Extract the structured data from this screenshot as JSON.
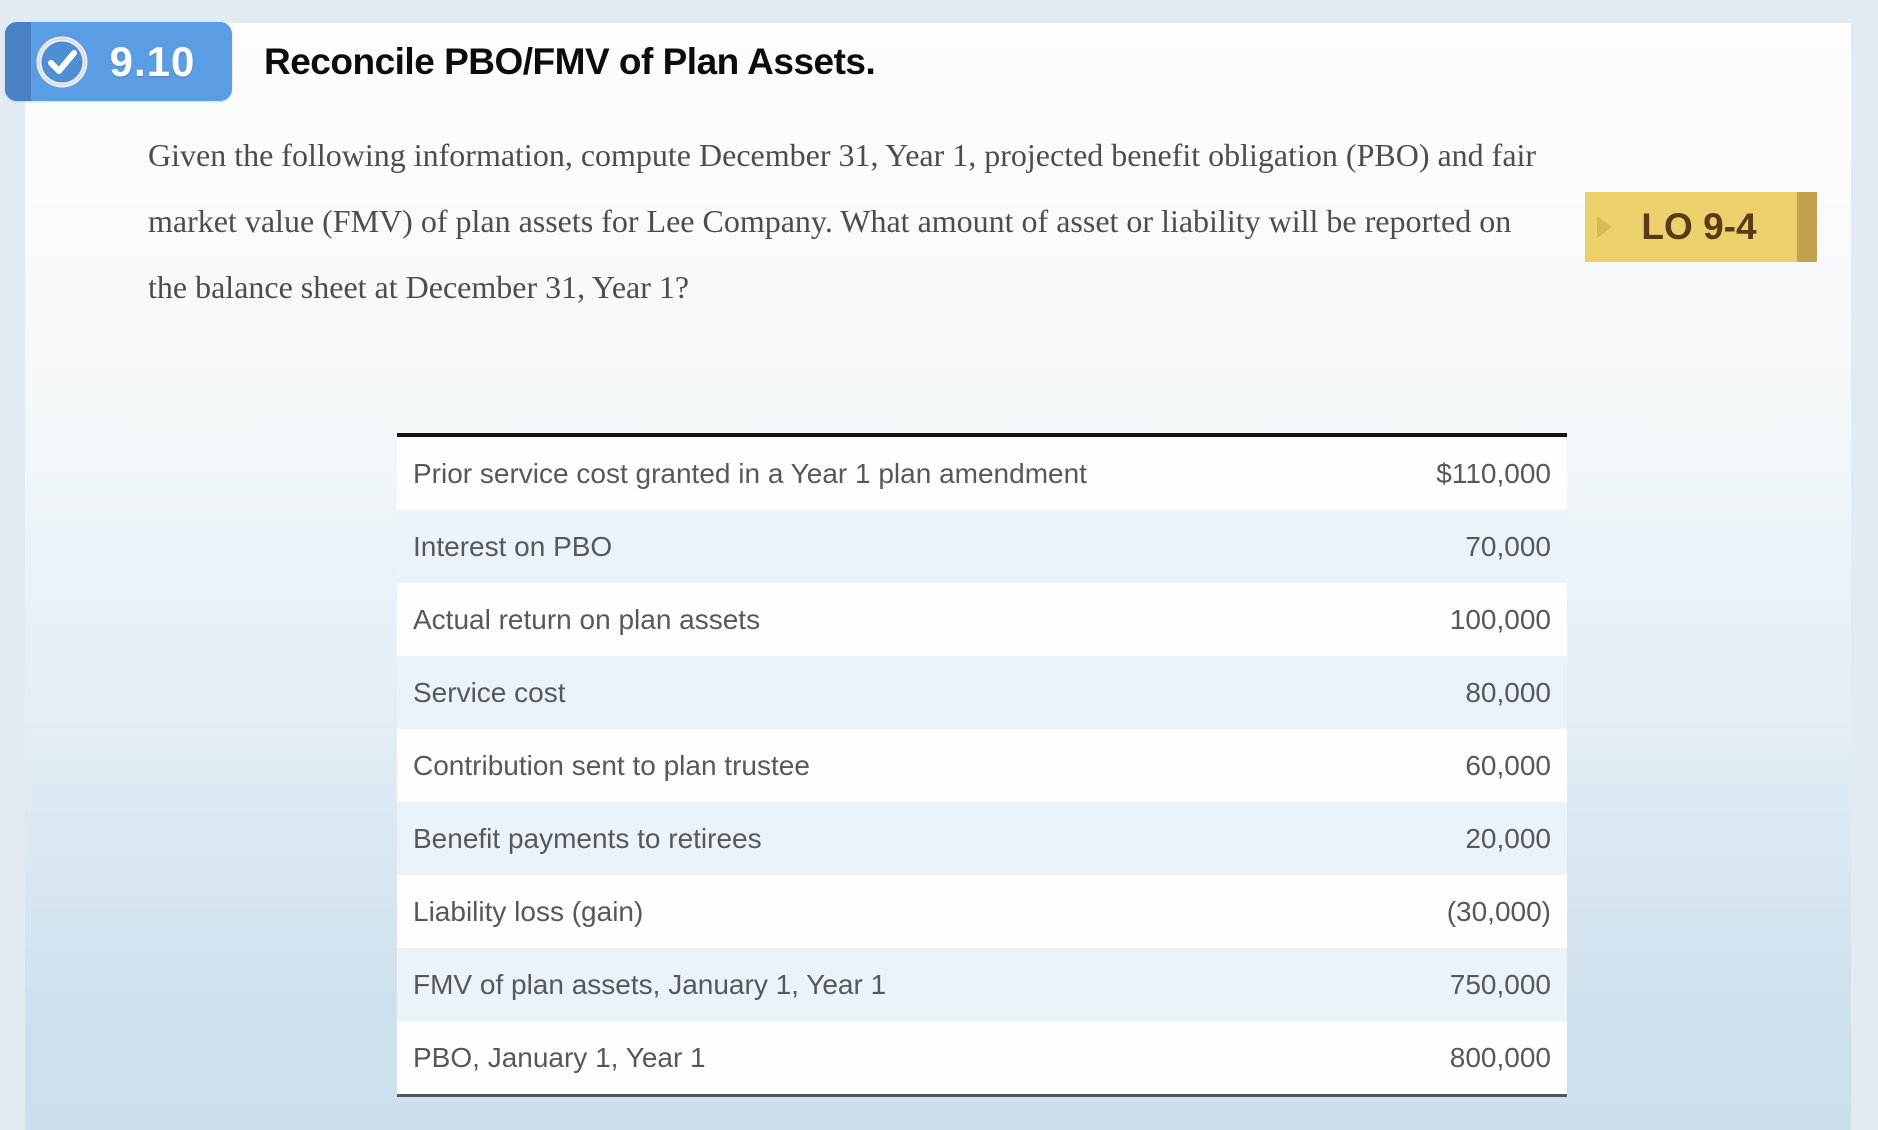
{
  "header": {
    "exercise_number": "9.10",
    "title": "Reconcile PBO/FMV of Plan Assets."
  },
  "learning_objective": {
    "label": "LO 9-4"
  },
  "question": {
    "text": "Given the following information, compute December 31, Year 1, projected benefit obligation (PBO) and fair market value (FMV) of plan assets for Lee Company. What amount of asset or liability will be reported on the balance sheet at December 31, Year 1?"
  },
  "table": {
    "rows": [
      {
        "label": "Prior service cost granted in a Year 1 plan amendment",
        "value": "$110,000"
      },
      {
        "label": "Interest on PBO",
        "value": "70,000"
      },
      {
        "label": "Actual return on plan assets",
        "value": "100,000"
      },
      {
        "label": "Service cost",
        "value": "80,000"
      },
      {
        "label": "Contribution sent to plan trustee",
        "value": "60,000"
      },
      {
        "label": "Benefit payments to retirees",
        "value": "20,000"
      },
      {
        "label": "Liability loss (gain)",
        "value": "(30,000)"
      },
      {
        "label": "FMV of plan assets, January 1, Year 1",
        "value": "750,000"
      },
      {
        "label": "PBO, January 1, Year 1",
        "value": "800,000"
      }
    ]
  },
  "icons": {
    "header_icon": "check-circle-icon",
    "lo_icon": "play-arrow-icon"
  },
  "colors": {
    "badge_blue": "#5b9de2",
    "badge_blue_dark": "#4a81c4",
    "lo_gold": "#ecd06b",
    "lo_gold_dark": "#c3a24c",
    "lo_text_brown": "#5b3a1b",
    "table_stripe_blue": "#ecf3f8",
    "page_frame_blue": "#e2eaf2"
  }
}
